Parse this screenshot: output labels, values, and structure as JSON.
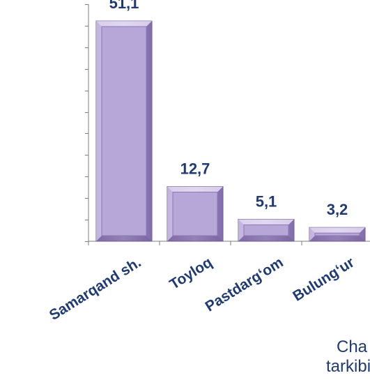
{
  "chart_data": {
    "type": "bar",
    "categories": [
      "Samarqand sh.",
      "Toyloq",
      "Pastdarg‘om",
      "Bulung‘ur"
    ],
    "values": [
      51.1,
      12.7,
      5.1,
      3.2
    ],
    "data_labels": [
      "51,1",
      "12,7",
      "5,1",
      "3,2"
    ],
    "ylim": [
      0,
      55
    ],
    "y_major_tick_step": 5,
    "title": "",
    "xlabel": "",
    "ylabel": "",
    "grid": false,
    "legend": "none",
    "bar_color": "#b9a6d9",
    "bar_edge_color": "#6e5a93",
    "label_color": "#1f3b73"
  },
  "corner_text": [
    "Cha",
    "tarkibi"
  ]
}
